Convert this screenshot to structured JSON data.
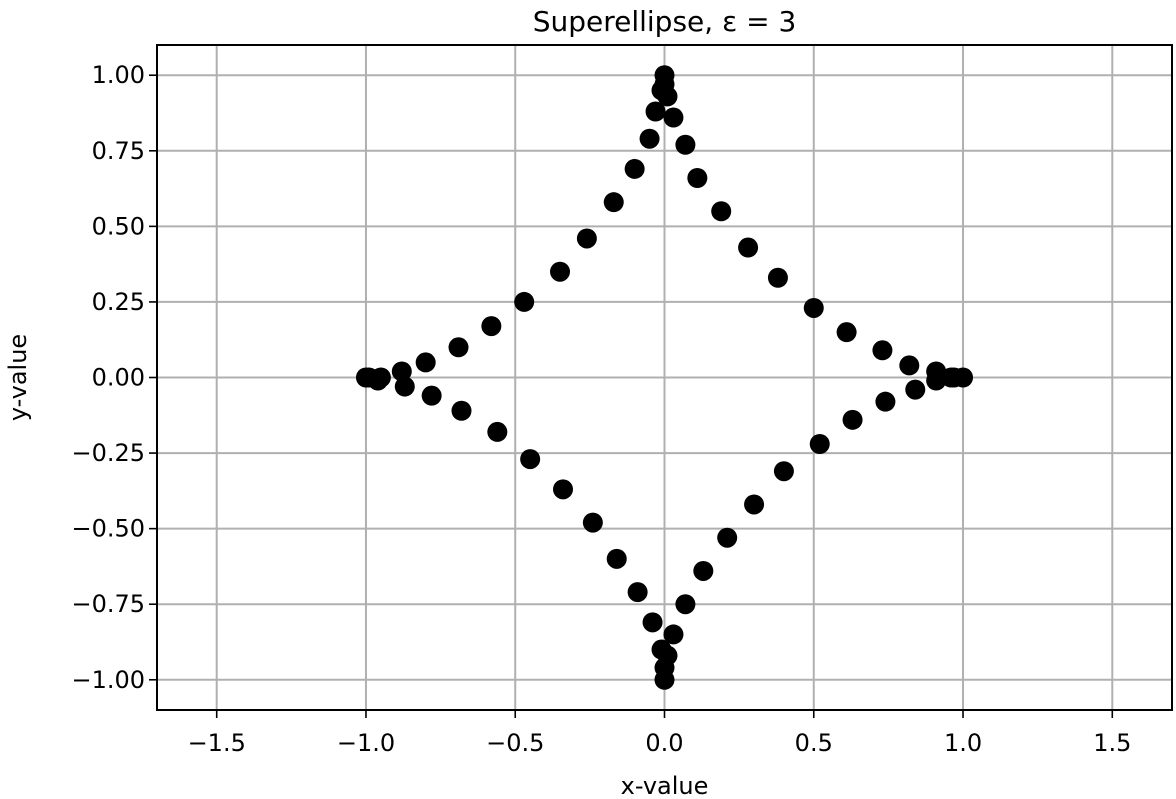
{
  "chart_data": {
    "type": "scatter",
    "title": "Superellipse, ε = 3",
    "xlabel": "x-value",
    "ylabel": "y-value",
    "xlim": [
      -1.7,
      1.7
    ],
    "ylim": [
      -1.1,
      1.1
    ],
    "grid": true,
    "xticks": [
      -1.5,
      -1.0,
      -0.5,
      0.0,
      0.5,
      1.0,
      1.5
    ],
    "xtick_labels": [
      "−1.5",
      "−1.0",
      "−0.5",
      "0.0",
      "0.5",
      "1.0",
      "1.5"
    ],
    "yticks": [
      1.0,
      0.75,
      0.5,
      0.25,
      0.0,
      -0.25,
      -0.5,
      -0.75,
      -1.0
    ],
    "ytick_labels": [
      "1.00",
      "0.75",
      "0.50",
      "0.25",
      "0.00",
      "−0.25",
      "−0.50",
      "−0.75",
      "−1.00"
    ],
    "marker_color": "#000000",
    "series": [
      {
        "x": [
          1.0,
          0.97,
          0.91,
          0.82,
          0.73,
          0.61,
          0.5,
          0.38,
          0.28,
          0.19,
          0.11,
          0.07,
          0.03,
          0.01,
          0.0,
          0.0,
          -0.01,
          -0.03,
          -0.05,
          -0.1,
          -0.17,
          -0.26,
          -0.35,
          -0.47,
          -0.58,
          -0.69,
          -0.8,
          -0.88,
          -0.95,
          -0.99,
          -1.0,
          -0.96,
          -0.87,
          -0.78,
          -0.68,
          -0.56,
          -0.45,
          -0.34,
          -0.24,
          -0.16,
          -0.09,
          -0.04,
          -0.01,
          0.0,
          0.0,
          0.01,
          0.03,
          0.07,
          0.13,
          0.21,
          0.3,
          0.4,
          0.52,
          0.63,
          0.74,
          0.84,
          0.91,
          0.96
        ],
        "y": [
          0.0,
          0.0,
          0.02,
          0.04,
          0.09,
          0.15,
          0.23,
          0.33,
          0.43,
          0.55,
          0.66,
          0.77,
          0.86,
          0.93,
          0.97,
          1.0,
          0.95,
          0.88,
          0.79,
          0.69,
          0.58,
          0.46,
          0.35,
          0.25,
          0.17,
          0.1,
          0.05,
          0.02,
          0.0,
          0.0,
          0.0,
          -0.01,
          -0.03,
          -0.06,
          -0.11,
          -0.18,
          -0.27,
          -0.37,
          -0.48,
          -0.6,
          -0.71,
          -0.81,
          -0.9,
          -0.96,
          -1.0,
          -0.92,
          -0.85,
          -0.75,
          -0.64,
          -0.53,
          -0.42,
          -0.31,
          -0.22,
          -0.14,
          -0.08,
          -0.04,
          -0.01,
          0.0
        ]
      }
    ]
  }
}
